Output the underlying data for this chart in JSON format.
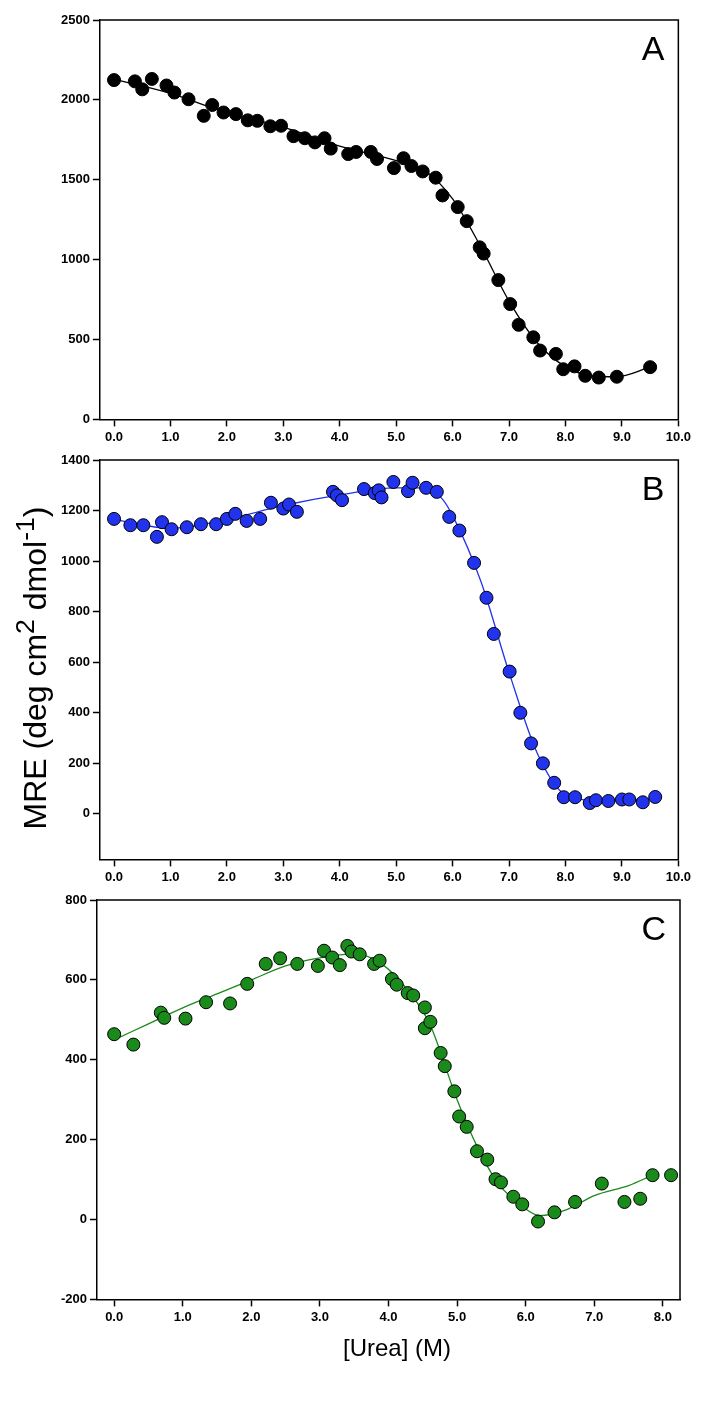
{
  "chart_data": [
    {
      "type": "scatter",
      "annotations": [
        "A"
      ],
      "xlim": [
        -0.25,
        10
      ],
      "xticks": [
        {
          "value": 0,
          "label": "0.0"
        },
        {
          "value": 1,
          "label": "1.0"
        },
        {
          "value": 2,
          "label": "2.0"
        },
        {
          "value": 3,
          "label": "3.0"
        },
        {
          "value": 4,
          "label": "4.0"
        },
        {
          "value": 5,
          "label": "5.0"
        },
        {
          "value": 6,
          "label": "6.0"
        },
        {
          "value": 7,
          "label": "7.0"
        },
        {
          "value": 8,
          "label": "8.0"
        },
        {
          "value": 9,
          "label": "9.0"
        },
        {
          "value": 10,
          "label": "10.0"
        }
      ],
      "ylim": [
        0,
        2500
      ],
      "yticks": [
        0,
        500,
        1000,
        1500,
        2000,
        2500
      ],
      "series": [
        {
          "marker": "circle",
          "color": "#000000",
          "x": [
            0,
            0.37,
            0.5,
            0.67,
            0.93,
            1.07,
            1.32,
            1.59,
            1.74,
            1.94,
            2.16,
            2.37,
            2.54,
            2.77,
            2.96,
            3.18,
            3.38,
            3.56,
            3.73,
            3.84,
            4.15,
            4.29,
            4.55,
            4.66,
            4.96,
            5.13,
            5.27,
            5.47,
            5.7,
            5.82,
            6.09,
            6.25,
            6.48,
            6.55,
            6.81,
            7.02,
            7.17,
            7.43,
            7.55,
            7.83,
            7.96,
            8.16,
            8.35,
            8.59,
            8.91,
            9.5
          ],
          "values": [
            2124,
            2116,
            2066,
            2131,
            2090,
            2046,
            2004,
            1900,
            1968,
            1921,
            1911,
            1872,
            1869,
            1835,
            1838,
            1773,
            1760,
            1734,
            1760,
            1695,
            1661,
            1674,
            1674,
            1630,
            1573,
            1635,
            1586,
            1552,
            1513,
            1402,
            1329,
            1241,
            1077,
            1038,
            872,
            722,
            592,
            514,
            431,
            410,
            314,
            332,
            273,
            262,
            267,
            327
          ]
        },
        {
          "type": "line",
          "color": "#000000",
          "x": [
            0,
            1,
            2,
            3,
            4,
            5,
            5.5,
            6,
            6.5,
            7,
            7.5,
            8,
            8.5,
            8.9,
            9.5
          ],
          "values": [
            2130,
            2040,
            1920,
            1830,
            1710,
            1620,
            1560,
            1380,
            1080,
            740,
            480,
            330,
            270,
            267,
            327
          ]
        }
      ]
    },
    {
      "type": "scatter",
      "annotations": [
        "B"
      ],
      "ylabel": "MRE (deg cm$^{2}$ dmol$^{-1}$)",
      "xlim": [
        -0.25,
        10
      ],
      "xticks": [
        {
          "value": 0,
          "label": "0.0"
        },
        {
          "value": 1,
          "label": "1.0"
        },
        {
          "value": 2,
          "label": "2.0"
        },
        {
          "value": 3,
          "label": "3.0"
        },
        {
          "value": 4,
          "label": "4.0"
        },
        {
          "value": 5,
          "label": "5.0"
        },
        {
          "value": 6,
          "label": "6.0"
        },
        {
          "value": 7,
          "label": "7.0"
        },
        {
          "value": 8,
          "label": "8.0"
        },
        {
          "value": 9,
          "label": "9.0"
        },
        {
          "value": 10,
          "label": "10.0"
        }
      ],
      "ylim": [
        -180,
        1400
      ],
      "yticks": [
        0,
        200,
        400,
        600,
        800,
        1000,
        1200,
        1400
      ],
      "series": [
        {
          "marker": "circle",
          "color": "#2233ee",
          "x": [
            0,
            0.29,
            0.52,
            0.76,
            0.85,
            1.02,
            1.29,
            1.54,
            1.81,
            2.0,
            2.15,
            2.35,
            2.59,
            2.78,
            3.0,
            3.1,
            3.24,
            3.88,
            3.95,
            4.04,
            4.43,
            4.62,
            4.69,
            4.74,
            4.95,
            5.21,
            5.29,
            5.53,
            5.72,
            5.94,
            6.12,
            6.38,
            6.6,
            6.73,
            7.01,
            7.2,
            7.39,
            7.6,
            7.8,
            7.97,
            8.17,
            8.43,
            8.54,
            8.76,
            9.0,
            9.13,
            9.37,
            9.59
          ],
          "values": [
            1167,
            1142,
            1142,
            1096,
            1154,
            1126,
            1134,
            1146,
            1146,
            1167,
            1187,
            1159,
            1167,
            1231,
            1208,
            1224,
            1195,
            1274,
            1260,
            1241,
            1285,
            1269,
            1280,
            1252,
            1313,
            1277,
            1310,
            1290,
            1274,
            1175,
            1121,
            993,
            855,
            712,
            563,
            400,
            279,
            200,
            123,
            66,
            66,
            43,
            54,
            51,
            57,
            57,
            46,
            67
          ]
        },
        {
          "type": "line",
          "color": "#2233ee",
          "x": [
            0,
            1,
            2,
            3,
            4,
            5,
            5.5,
            5.8,
            6,
            6.5,
            7,
            7.5,
            8,
            8.5,
            9,
            9.6
          ],
          "values": [
            1165,
            1130,
            1165,
            1220,
            1262,
            1290,
            1290,
            1250,
            1180,
            920,
            560,
            240,
            75,
            55,
            55,
            60
          ]
        }
      ]
    },
    {
      "type": "scatter",
      "annotations": [
        "C"
      ],
      "xlabel": "[Urea] (M)",
      "xlim": [
        -0.25,
        8.25
      ],
      "xticks": [
        {
          "value": 0,
          "label": "0.0"
        },
        {
          "value": 1,
          "label": "1.0"
        },
        {
          "value": 2,
          "label": "2.0"
        },
        {
          "value": 3,
          "label": "3.0"
        },
        {
          "value": 4,
          "label": "4.0"
        },
        {
          "value": 5,
          "label": "5.0"
        },
        {
          "value": 6,
          "label": "6.0"
        },
        {
          "value": 7,
          "label": "7.0"
        },
        {
          "value": 8,
          "label": "8.0"
        }
      ],
      "ylim": [
        -200,
        800
      ],
      "yticks": [
        -200,
        0,
        200,
        400,
        600,
        800
      ],
      "series": [
        {
          "marker": "circle",
          "color": "#1a8a1a",
          "x": [
            0,
            0.28,
            0.68,
            0.73,
            1.04,
            1.34,
            1.69,
            1.94,
            2.21,
            2.42,
            2.67,
            2.97,
            3.06,
            3.18,
            3.29,
            3.4,
            3.46,
            3.58,
            3.79,
            3.87,
            4.05,
            4.12,
            4.28,
            4.36,
            4.53,
            4.53,
            4.61,
            4.76,
            4.82,
            4.96,
            5.03,
            5.14,
            5.29,
            5.44,
            5.56,
            5.64,
            5.82,
            5.95,
            6.18,
            6.42,
            6.72,
            7.11,
            7.44,
            7.67,
            7.85,
            8.12
          ],
          "values": [
            464,
            438,
            518,
            505,
            503,
            544,
            541,
            590,
            640,
            654,
            640,
            635,
            673,
            656,
            637,
            685,
            671,
            664,
            640,
            648,
            602,
            588,
            567,
            561,
            531,
            479,
            495,
            417,
            384,
            321,
            258,
            232,
            171,
            150,
            101,
            93,
            57,
            38,
            -5,
            18,
            44,
            90,
            44,
            52,
            111,
            111
          ]
        },
        {
          "type": "line",
          "color": "#1a8a1a",
          "x": [
            0,
            0.5,
            1,
            1.5,
            2,
            2.5,
            3,
            3.5,
            3.9,
            4.3,
            4.6,
            5,
            5.3,
            5.6,
            5.9,
            6.2,
            6.6,
            7,
            7.5,
            7.85
          ],
          "values": [
            450,
            490,
            530,
            565,
            600,
            635,
            655,
            665,
            640,
            570,
            490,
            300,
            180,
            90,
            40,
            10,
            25,
            60,
            85,
            111
          ]
        }
      ]
    }
  ]
}
